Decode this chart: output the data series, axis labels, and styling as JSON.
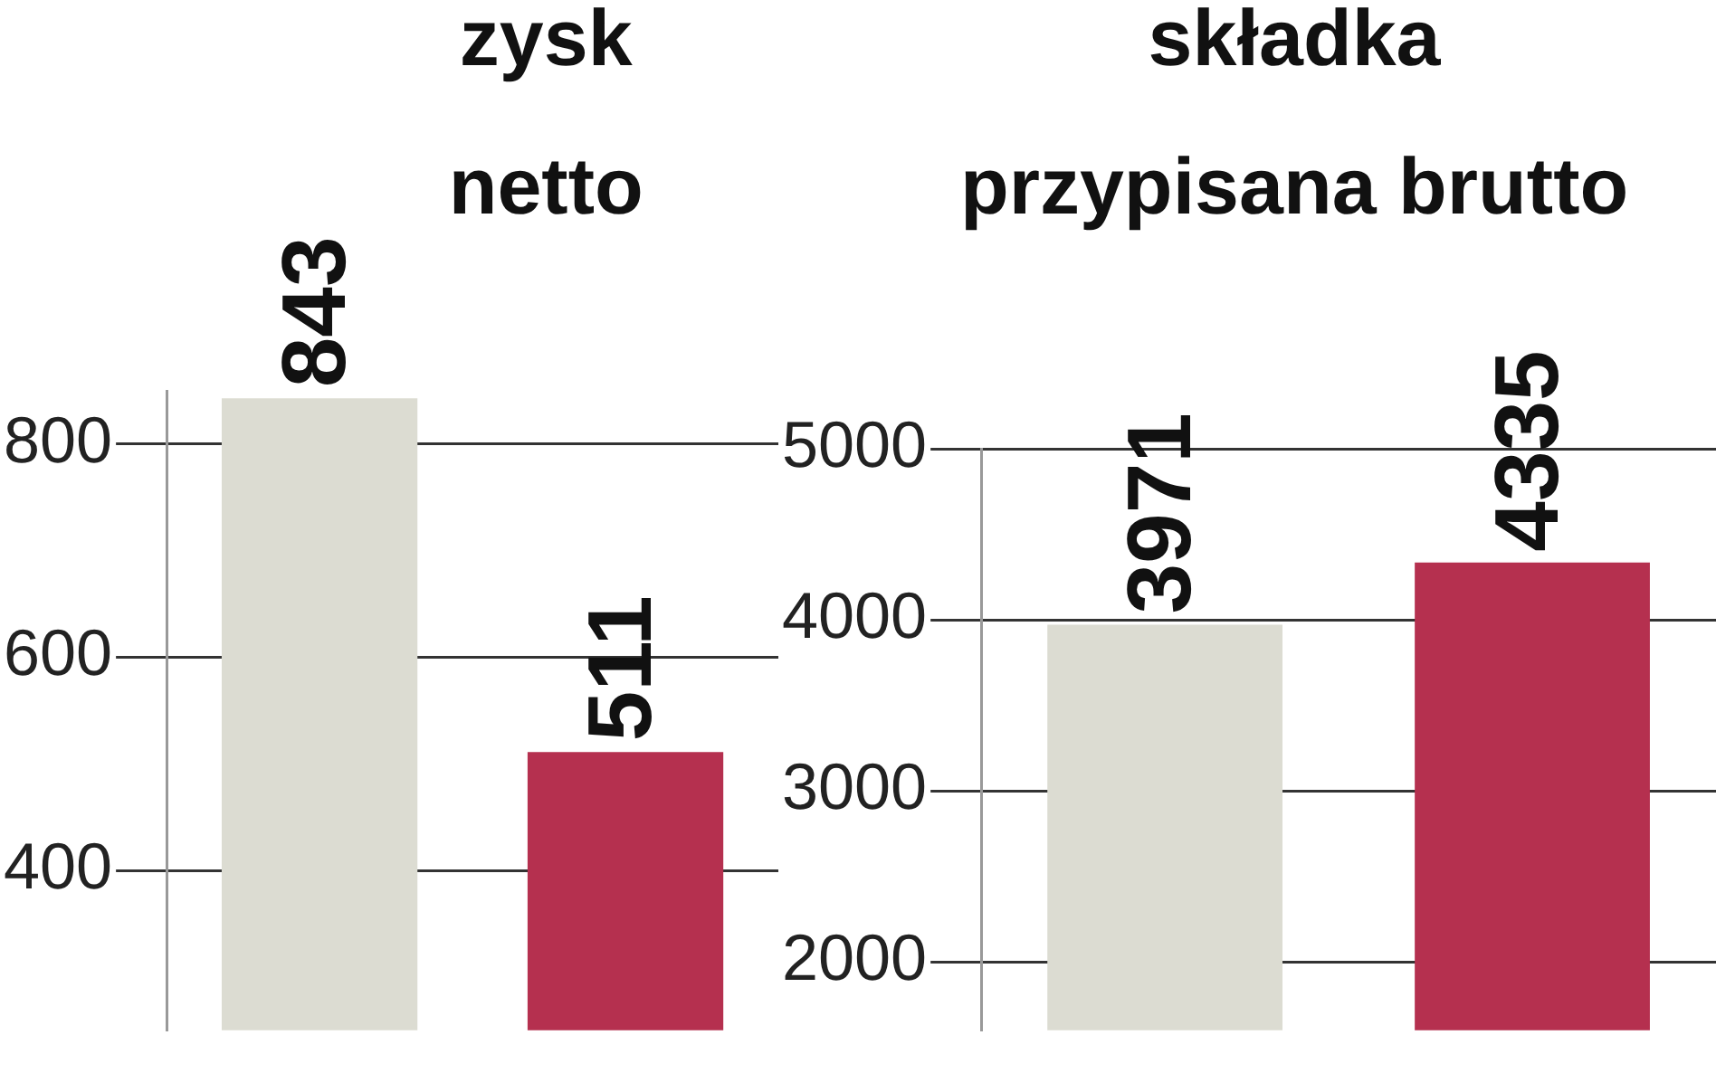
{
  "chart_data": [
    {
      "type": "bar",
      "title": "zysk\nnetto",
      "categories": [
        null,
        null
      ],
      "values": [
        843,
        511
      ],
      "colors": [
        "#dcdcd2",
        "#b5304f"
      ],
      "ylim": [
        250,
        850
      ],
      "yticks": [
        400,
        600,
        800
      ],
      "grid": "y",
      "data_labels": true
    },
    {
      "type": "bar",
      "title": "składka\nprzypisana brutto",
      "categories": [
        null,
        null
      ],
      "values": [
        3971,
        4335
      ],
      "colors": [
        "#dcdcd2",
        "#b5304f"
      ],
      "ylim": [
        1600,
        5000
      ],
      "yticks": [
        2000,
        3000,
        4000,
        5000
      ],
      "grid": "y",
      "data_labels": true
    }
  ]
}
